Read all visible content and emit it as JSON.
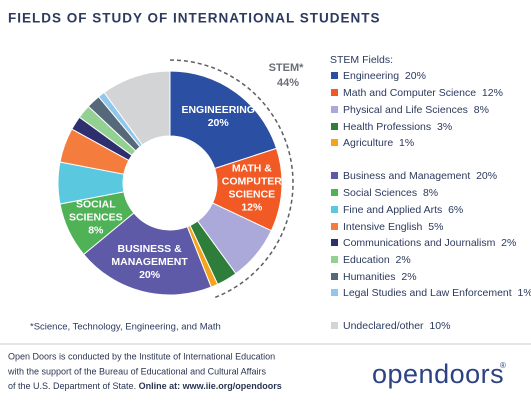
{
  "chart_data": {
    "type": "donut",
    "title": "FIELDS OF STUDY OF INTERNATIONAL STUDENTS",
    "legend_title": "STEM Fields:",
    "categories": [
      "Engineering",
      "Math and Computer Science",
      "Physical and Life Sciences",
      "Health Professions",
      "Agriculture",
      "Business and Management",
      "Social Sciences",
      "Fine and Applied Arts",
      "Intensive English",
      "Communications and Journalism",
      "Education",
      "Humanities",
      "Legal Studies and Law Enforcement",
      "Undeclared/other"
    ],
    "values": [
      20,
      12,
      8,
      3,
      1,
      20,
      8,
      6,
      5,
      2,
      2,
      2,
      1,
      10
    ],
    "value_labels": [
      "20%",
      "12%",
      "8%",
      "3%",
      "1%",
      "20%",
      "8%",
      "6%",
      "5%",
      "2%",
      "2%",
      "2%",
      "1%",
      "10%"
    ],
    "colors": [
      "#2b4fa2",
      "#f15a24",
      "#aaa9d9",
      "#2f7d3a",
      "#f7a21b",
      "#5e5aa8",
      "#4fb257",
      "#5ac8df",
      "#f47c3c",
      "#2d2f6e",
      "#92d192",
      "#56697a",
      "#90c7ec",
      "#d3d4d6"
    ],
    "slice_labels": [
      [
        "ENGINEERING"
      ],
      [
        "MATH &",
        "COMPUTER",
        "SCIENCE"
      ],
      null,
      null,
      null,
      [
        "BUSINESS &",
        "MANAGEMENT"
      ],
      [
        "SOCIAL",
        "SCIENCES"
      ],
      null,
      null,
      null,
      null,
      null,
      null,
      null
    ],
    "stem_group": {
      "label": "STEM*",
      "value": 44,
      "value_label": "44%"
    },
    "footnote": "*Science, Technology, Engineering, and Math"
  },
  "footer": {
    "lines": [
      "Open Doors is conducted by the Institute of International Education",
      "with the support of the Bureau of Educational and Cultural Affairs",
      "of the U.S. Department of State."
    ],
    "link": "Online at: www.iie.org/opendoors",
    "logo": "opendoors",
    "logo_mark": "®"
  }
}
